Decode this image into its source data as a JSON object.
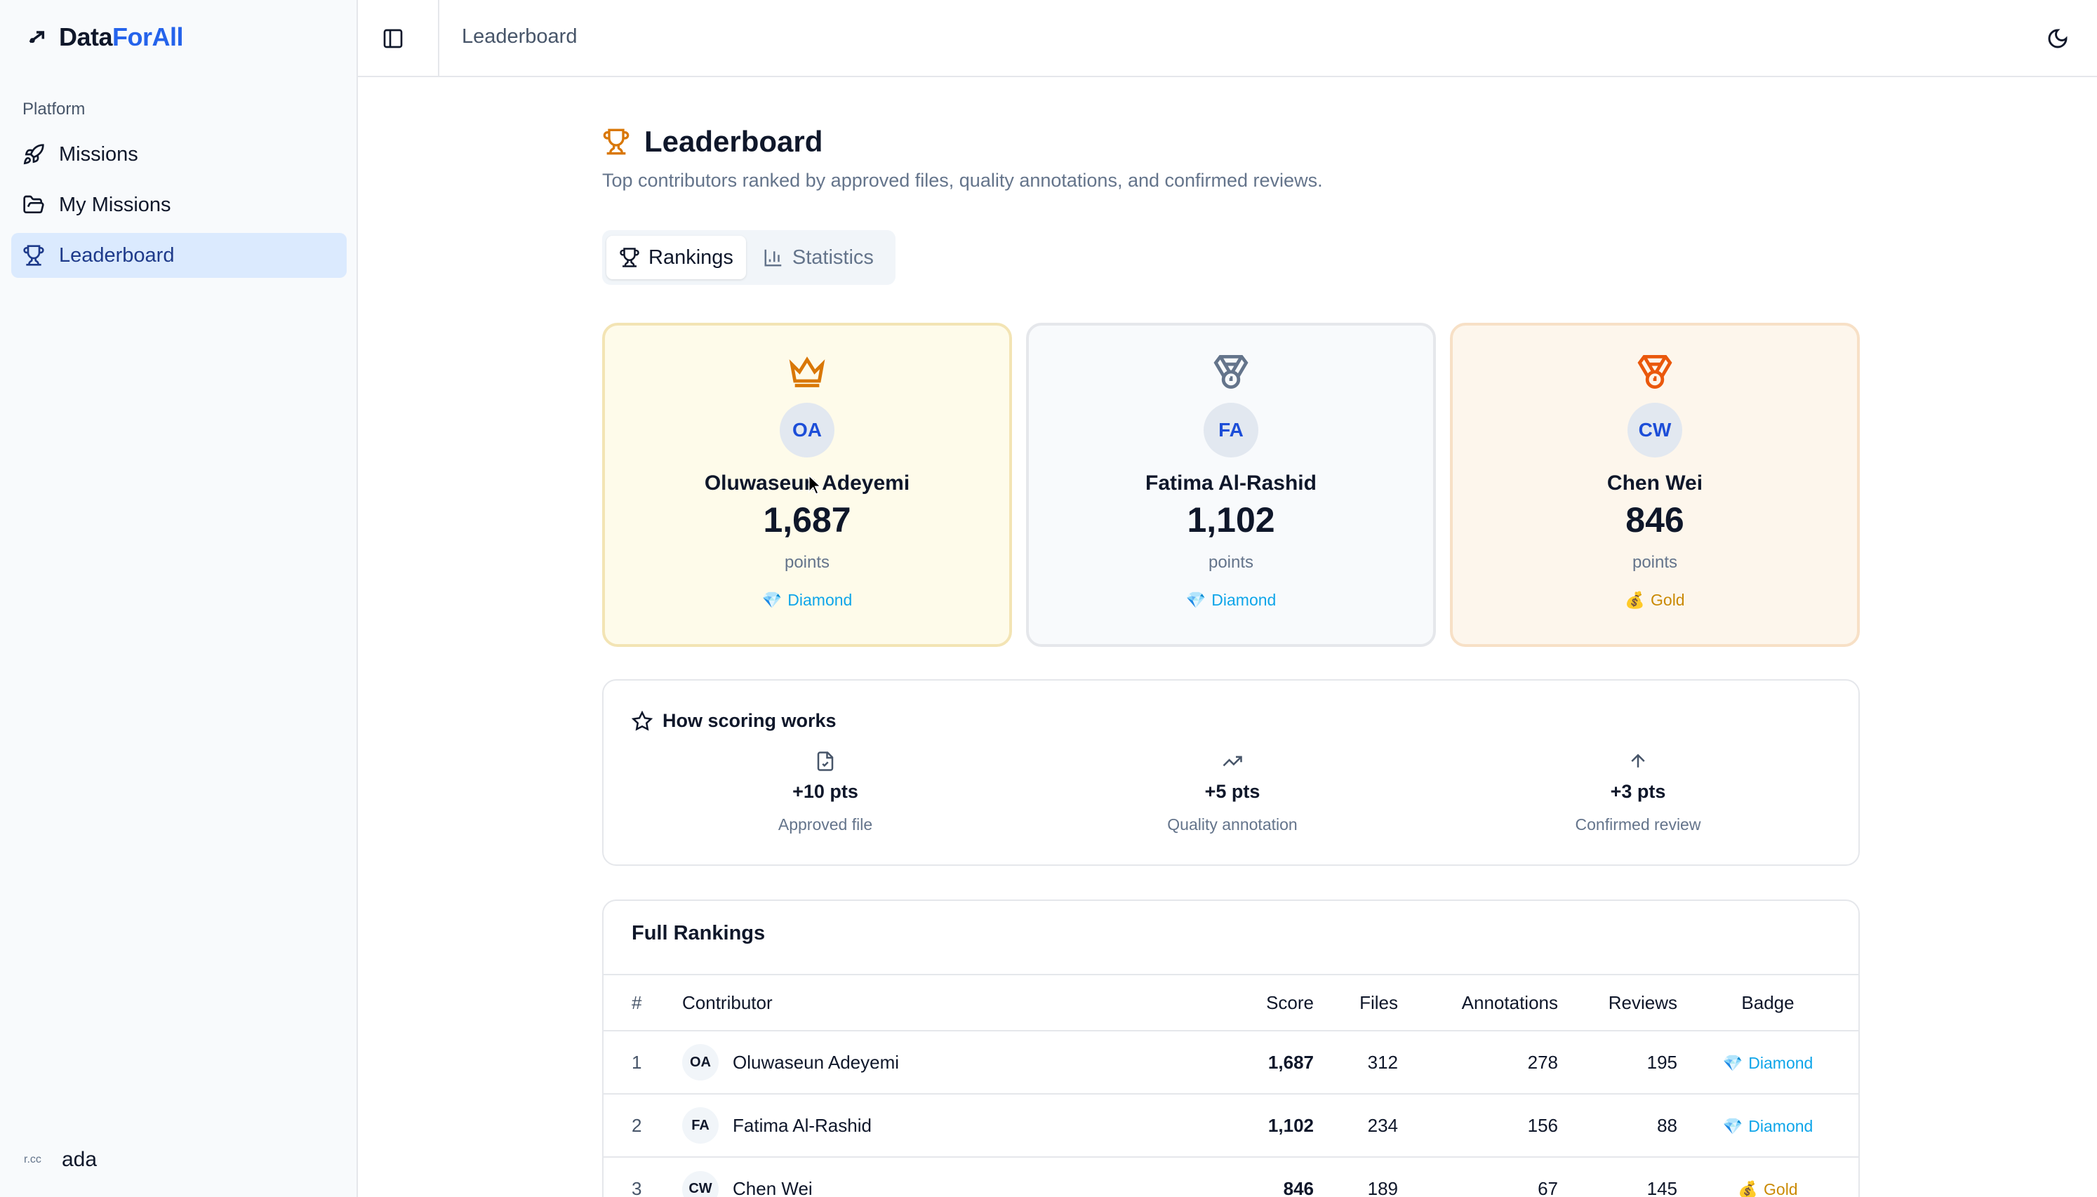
{
  "brand": {
    "name_part1": "Data",
    "name_part2": "ForAll"
  },
  "sidebar": {
    "section_label": "Platform",
    "items": [
      {
        "label": "Missions",
        "icon": "rocket-icon",
        "active": false
      },
      {
        "label": "My Missions",
        "icon": "folder-open-icon",
        "active": false
      },
      {
        "label": "Leaderboard",
        "icon": "trophy-icon",
        "active": true
      }
    ],
    "user": {
      "avatar_text": "r.cc",
      "name": "ada"
    }
  },
  "topbar": {
    "title": "Leaderboard"
  },
  "page": {
    "title": "Leaderboard",
    "subtitle": "Top contributors ranked by approved files, quality annotations, and confirmed reviews."
  },
  "tabs": [
    {
      "label": "Rankings",
      "icon": "trophy-icon",
      "active": true
    },
    {
      "label": "Statistics",
      "icon": "bar-chart-icon",
      "active": false
    }
  ],
  "podium": [
    {
      "initials": "OA",
      "name": "Oluwaseun Adeyemi",
      "score": "1,687",
      "points_label": "points",
      "badge": "Diamond",
      "badge_icon": "💎",
      "icon": "crown-icon",
      "accent": "#d97706"
    },
    {
      "initials": "FA",
      "name": "Fatima Al-Rashid",
      "score": "1,102",
      "points_label": "points",
      "badge": "Diamond",
      "badge_icon": "💎",
      "icon": "medal-icon",
      "accent": "#64748b"
    },
    {
      "initials": "CW",
      "name": "Chen Wei",
      "score": "846",
      "points_label": "points",
      "badge": "Gold",
      "badge_icon": "💰",
      "icon": "medal-icon",
      "accent": "#ea580c"
    }
  ],
  "scoring": {
    "title": "How scoring works",
    "rules": [
      {
        "icon": "file-check-icon",
        "pts": "+10 pts",
        "label": "Approved file"
      },
      {
        "icon": "trending-up-icon",
        "pts": "+5 pts",
        "label": "Quality annotation"
      },
      {
        "icon": "arrow-up-icon",
        "pts": "+3 pts",
        "label": "Confirmed review"
      }
    ]
  },
  "rankings": {
    "title": "Full Rankings",
    "columns": {
      "rank": "#",
      "contributor": "Contributor",
      "score": "Score",
      "files": "Files",
      "annotations": "Annotations",
      "reviews": "Reviews",
      "badge": "Badge"
    },
    "rows": [
      {
        "rank": "1",
        "initials": "OA",
        "name": "Oluwaseun Adeyemi",
        "score": "1,687",
        "files": "312",
        "annotations": "278",
        "reviews": "195",
        "badge": "Diamond",
        "badge_icon": "💎",
        "badge_type": "diamond"
      },
      {
        "rank": "2",
        "initials": "FA",
        "name": "Fatima Al-Rashid",
        "score": "1,102",
        "files": "234",
        "annotations": "156",
        "reviews": "88",
        "badge": "Diamond",
        "badge_icon": "💎",
        "badge_type": "diamond"
      },
      {
        "rank": "3",
        "initials": "CW",
        "name": "Chen Wei",
        "score": "846",
        "files": "189",
        "annotations": "67",
        "reviews": "145",
        "badge": "Gold",
        "badge_icon": "💰",
        "badge_type": "gold"
      }
    ]
  }
}
